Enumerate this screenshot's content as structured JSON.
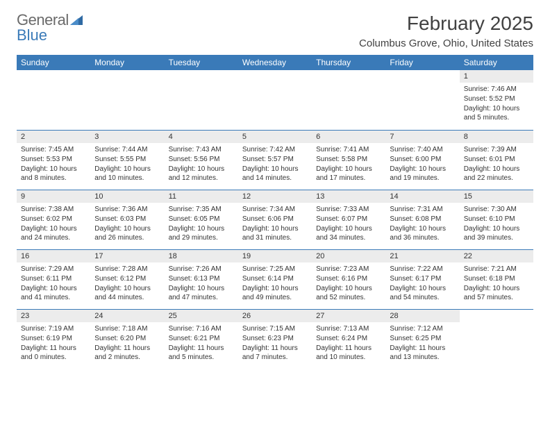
{
  "logo": {
    "text1": "General",
    "text2": "Blue"
  },
  "title": "February 2025",
  "location": "Columbus Grove, Ohio, United States",
  "colors": {
    "header_bg": "#3a7ab8",
    "header_text": "#ffffff",
    "daynum_bg": "#ececec",
    "border": "#3a7ab8",
    "logo_gray": "#6a6a6a",
    "logo_blue": "#3a7ab8"
  },
  "daynames": [
    "Sunday",
    "Monday",
    "Tuesday",
    "Wednesday",
    "Thursday",
    "Friday",
    "Saturday"
  ],
  "weeks": [
    [
      null,
      null,
      null,
      null,
      null,
      null,
      {
        "n": "1",
        "sr": "Sunrise: 7:46 AM",
        "ss": "Sunset: 5:52 PM",
        "dl": "Daylight: 10 hours and 5 minutes."
      }
    ],
    [
      {
        "n": "2",
        "sr": "Sunrise: 7:45 AM",
        "ss": "Sunset: 5:53 PM",
        "dl": "Daylight: 10 hours and 8 minutes."
      },
      {
        "n": "3",
        "sr": "Sunrise: 7:44 AM",
        "ss": "Sunset: 5:55 PM",
        "dl": "Daylight: 10 hours and 10 minutes."
      },
      {
        "n": "4",
        "sr": "Sunrise: 7:43 AM",
        "ss": "Sunset: 5:56 PM",
        "dl": "Daylight: 10 hours and 12 minutes."
      },
      {
        "n": "5",
        "sr": "Sunrise: 7:42 AM",
        "ss": "Sunset: 5:57 PM",
        "dl": "Daylight: 10 hours and 14 minutes."
      },
      {
        "n": "6",
        "sr": "Sunrise: 7:41 AM",
        "ss": "Sunset: 5:58 PM",
        "dl": "Daylight: 10 hours and 17 minutes."
      },
      {
        "n": "7",
        "sr": "Sunrise: 7:40 AM",
        "ss": "Sunset: 6:00 PM",
        "dl": "Daylight: 10 hours and 19 minutes."
      },
      {
        "n": "8",
        "sr": "Sunrise: 7:39 AM",
        "ss": "Sunset: 6:01 PM",
        "dl": "Daylight: 10 hours and 22 minutes."
      }
    ],
    [
      {
        "n": "9",
        "sr": "Sunrise: 7:38 AM",
        "ss": "Sunset: 6:02 PM",
        "dl": "Daylight: 10 hours and 24 minutes."
      },
      {
        "n": "10",
        "sr": "Sunrise: 7:36 AM",
        "ss": "Sunset: 6:03 PM",
        "dl": "Daylight: 10 hours and 26 minutes."
      },
      {
        "n": "11",
        "sr": "Sunrise: 7:35 AM",
        "ss": "Sunset: 6:05 PM",
        "dl": "Daylight: 10 hours and 29 minutes."
      },
      {
        "n": "12",
        "sr": "Sunrise: 7:34 AM",
        "ss": "Sunset: 6:06 PM",
        "dl": "Daylight: 10 hours and 31 minutes."
      },
      {
        "n": "13",
        "sr": "Sunrise: 7:33 AM",
        "ss": "Sunset: 6:07 PM",
        "dl": "Daylight: 10 hours and 34 minutes."
      },
      {
        "n": "14",
        "sr": "Sunrise: 7:31 AM",
        "ss": "Sunset: 6:08 PM",
        "dl": "Daylight: 10 hours and 36 minutes."
      },
      {
        "n": "15",
        "sr": "Sunrise: 7:30 AM",
        "ss": "Sunset: 6:10 PM",
        "dl": "Daylight: 10 hours and 39 minutes."
      }
    ],
    [
      {
        "n": "16",
        "sr": "Sunrise: 7:29 AM",
        "ss": "Sunset: 6:11 PM",
        "dl": "Daylight: 10 hours and 41 minutes."
      },
      {
        "n": "17",
        "sr": "Sunrise: 7:28 AM",
        "ss": "Sunset: 6:12 PM",
        "dl": "Daylight: 10 hours and 44 minutes."
      },
      {
        "n": "18",
        "sr": "Sunrise: 7:26 AM",
        "ss": "Sunset: 6:13 PM",
        "dl": "Daylight: 10 hours and 47 minutes."
      },
      {
        "n": "19",
        "sr": "Sunrise: 7:25 AM",
        "ss": "Sunset: 6:14 PM",
        "dl": "Daylight: 10 hours and 49 minutes."
      },
      {
        "n": "20",
        "sr": "Sunrise: 7:23 AM",
        "ss": "Sunset: 6:16 PM",
        "dl": "Daylight: 10 hours and 52 minutes."
      },
      {
        "n": "21",
        "sr": "Sunrise: 7:22 AM",
        "ss": "Sunset: 6:17 PM",
        "dl": "Daylight: 10 hours and 54 minutes."
      },
      {
        "n": "22",
        "sr": "Sunrise: 7:21 AM",
        "ss": "Sunset: 6:18 PM",
        "dl": "Daylight: 10 hours and 57 minutes."
      }
    ],
    [
      {
        "n": "23",
        "sr": "Sunrise: 7:19 AM",
        "ss": "Sunset: 6:19 PM",
        "dl": "Daylight: 11 hours and 0 minutes."
      },
      {
        "n": "24",
        "sr": "Sunrise: 7:18 AM",
        "ss": "Sunset: 6:20 PM",
        "dl": "Daylight: 11 hours and 2 minutes."
      },
      {
        "n": "25",
        "sr": "Sunrise: 7:16 AM",
        "ss": "Sunset: 6:21 PM",
        "dl": "Daylight: 11 hours and 5 minutes."
      },
      {
        "n": "26",
        "sr": "Sunrise: 7:15 AM",
        "ss": "Sunset: 6:23 PM",
        "dl": "Daylight: 11 hours and 7 minutes."
      },
      {
        "n": "27",
        "sr": "Sunrise: 7:13 AM",
        "ss": "Sunset: 6:24 PM",
        "dl": "Daylight: 11 hours and 10 minutes."
      },
      {
        "n": "28",
        "sr": "Sunrise: 7:12 AM",
        "ss": "Sunset: 6:25 PM",
        "dl": "Daylight: 11 hours and 13 minutes."
      },
      null
    ]
  ]
}
